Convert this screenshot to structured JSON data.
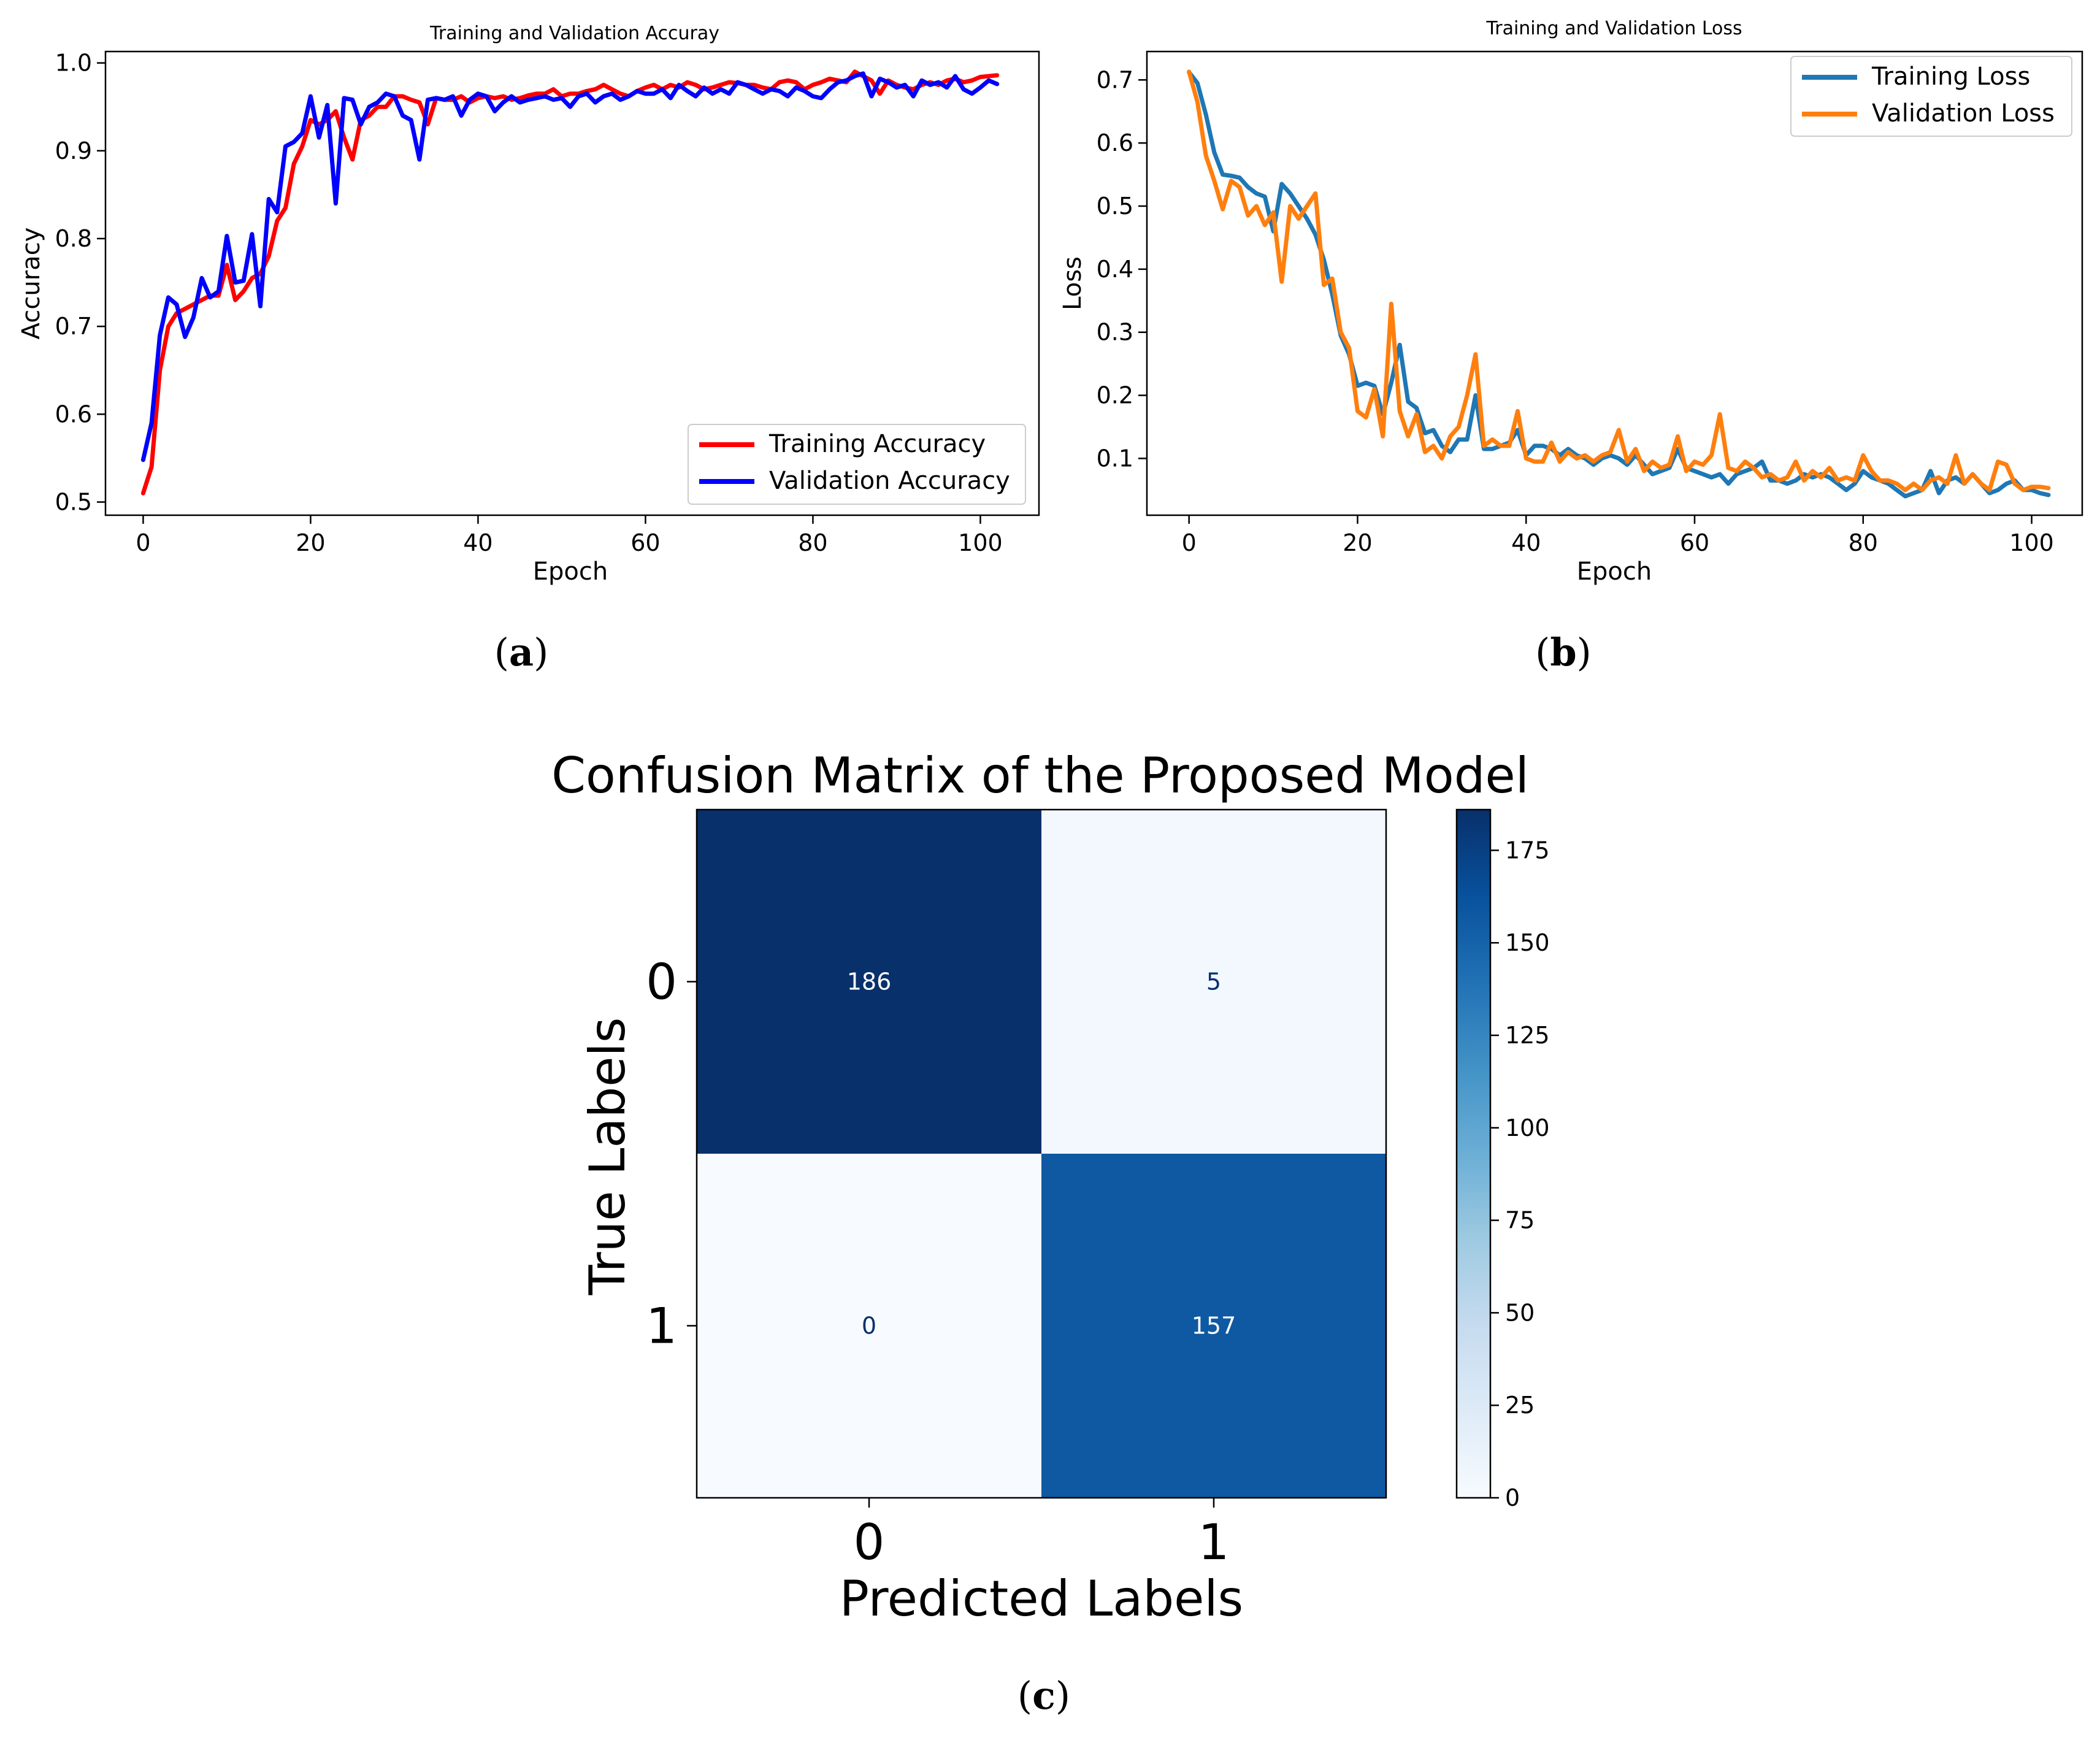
{
  "panels": {
    "a": {
      "label": "a"
    },
    "b": {
      "label": "b"
    },
    "c": {
      "label": "c"
    }
  },
  "chart_data": [
    {
      "type": "line",
      "title": "Training and Validation Accuray",
      "xlabel": "Epoch",
      "ylabel": "Accuracy",
      "xlim": [
        -4.5,
        107
      ],
      "ylim": [
        0.485,
        1.013
      ],
      "xticks": [
        0,
        20,
        40,
        60,
        80,
        100
      ],
      "yticks": [
        0.5,
        0.6,
        0.7,
        0.8,
        0.9,
        1.0
      ],
      "ytick_labels": [
        "0.5",
        "0.6",
        "0.7",
        "0.8",
        "0.9",
        "1.0"
      ],
      "grid": false,
      "legend": "lower-right",
      "colors": {
        "series": [
          "#ff0000",
          "#0000ff"
        ]
      },
      "x": [
        0,
        1,
        2,
        3,
        4,
        5,
        6,
        7,
        8,
        9,
        10,
        11,
        12,
        13,
        14,
        15,
        16,
        17,
        18,
        19,
        20,
        21,
        22,
        23,
        24,
        25,
        26,
        27,
        28,
        29,
        30,
        31,
        32,
        33,
        34,
        35,
        36,
        37,
        38,
        39,
        40,
        41,
        42,
        43,
        44,
        45,
        46,
        47,
        48,
        49,
        50,
        51,
        52,
        53,
        54,
        55,
        56,
        57,
        58,
        59,
        60,
        61,
        62,
        63,
        64,
        65,
        66,
        67,
        68,
        69,
        70,
        71,
        72,
        73,
        74,
        75,
        76,
        77,
        78,
        79,
        80,
        81,
        82,
        83,
        84,
        85,
        86,
        87,
        88,
        89,
        90,
        91,
        92,
        93,
        94,
        95,
        96,
        97,
        98,
        99,
        100,
        101,
        102
      ],
      "series": [
        {
          "name": "Training Accuracy",
          "values": [
            0.51,
            0.54,
            0.65,
            0.7,
            0.715,
            0.72,
            0.725,
            0.73,
            0.735,
            0.735,
            0.77,
            0.73,
            0.74,
            0.755,
            0.76,
            0.78,
            0.82,
            0.835,
            0.885,
            0.905,
            0.935,
            0.93,
            0.935,
            0.945,
            0.915,
            0.89,
            0.935,
            0.94,
            0.95,
            0.95,
            0.962,
            0.962,
            0.958,
            0.955,
            0.93,
            0.96,
            0.958,
            0.958,
            0.962,
            0.955,
            0.96,
            0.962,
            0.96,
            0.962,
            0.958,
            0.96,
            0.963,
            0.965,
            0.965,
            0.97,
            0.962,
            0.965,
            0.965,
            0.968,
            0.97,
            0.975,
            0.97,
            0.965,
            0.962,
            0.968,
            0.972,
            0.975,
            0.97,
            0.975,
            0.972,
            0.978,
            0.975,
            0.97,
            0.972,
            0.975,
            0.978,
            0.977,
            0.975,
            0.975,
            0.972,
            0.97,
            0.978,
            0.98,
            0.978,
            0.97,
            0.975,
            0.978,
            0.982,
            0.98,
            0.978,
            0.99,
            0.985,
            0.98,
            0.965,
            0.98,
            0.975,
            0.972,
            0.97,
            0.975,
            0.978,
            0.975,
            0.98,
            0.982,
            0.978,
            0.98,
            0.984,
            0.985,
            0.986
          ]
        },
        {
          "name": "Validation Accuracy",
          "values": [
            0.548,
            0.59,
            0.69,
            0.733,
            0.725,
            0.688,
            0.71,
            0.755,
            0.733,
            0.74,
            0.803,
            0.75,
            0.752,
            0.805,
            0.723,
            0.845,
            0.83,
            0.905,
            0.91,
            0.92,
            0.962,
            0.915,
            0.952,
            0.84,
            0.96,
            0.958,
            0.93,
            0.95,
            0.955,
            0.965,
            0.962,
            0.94,
            0.935,
            0.89,
            0.958,
            0.96,
            0.958,
            0.962,
            0.94,
            0.958,
            0.965,
            0.962,
            0.945,
            0.955,
            0.962,
            0.955,
            0.958,
            0.96,
            0.962,
            0.958,
            0.96,
            0.95,
            0.962,
            0.965,
            0.955,
            0.962,
            0.965,
            0.958,
            0.962,
            0.968,
            0.965,
            0.965,
            0.97,
            0.96,
            0.975,
            0.968,
            0.962,
            0.972,
            0.965,
            0.97,
            0.965,
            0.978,
            0.975,
            0.97,
            0.965,
            0.97,
            0.968,
            0.962,
            0.972,
            0.968,
            0.962,
            0.96,
            0.97,
            0.978,
            0.98,
            0.985,
            0.988,
            0.962,
            0.982,
            0.978,
            0.972,
            0.975,
            0.962,
            0.98,
            0.975,
            0.978,
            0.972,
            0.985,
            0.97,
            0.965,
            0.972,
            0.98,
            0.976
          ]
        }
      ]
    },
    {
      "type": "line",
      "title": "Training and Validation Loss",
      "xlabel": "Epoch",
      "ylabel": "Loss",
      "xlim": [
        -5,
        106
      ],
      "ylim": [
        0.01,
        0.745
      ],
      "xticks": [
        0,
        20,
        40,
        60,
        80,
        100
      ],
      "yticks": [
        0.1,
        0.2,
        0.3,
        0.4,
        0.5,
        0.6,
        0.7
      ],
      "ytick_labels": [
        "0.1",
        "0.2",
        "0.3",
        "0.4",
        "0.5",
        "0.6",
        "0.7"
      ],
      "grid": false,
      "legend": "top-right",
      "colors": {
        "series": [
          "#1f77b4",
          "#ff7f0e"
        ]
      },
      "x": [
        0,
        1,
        2,
        3,
        4,
        5,
        6,
        7,
        8,
        9,
        10,
        11,
        12,
        13,
        14,
        15,
        16,
        17,
        18,
        19,
        20,
        21,
        22,
        23,
        24,
        25,
        26,
        27,
        28,
        29,
        30,
        31,
        32,
        33,
        34,
        35,
        36,
        37,
        38,
        39,
        40,
        41,
        42,
        43,
        44,
        45,
        46,
        47,
        48,
        49,
        50,
        51,
        52,
        53,
        54,
        55,
        56,
        57,
        58,
        59,
        60,
        61,
        62,
        63,
        64,
        65,
        66,
        67,
        68,
        69,
        70,
        71,
        72,
        73,
        74,
        75,
        76,
        77,
        78,
        79,
        80,
        81,
        82,
        83,
        84,
        85,
        86,
        87,
        88,
        89,
        90,
        91,
        92,
        93,
        94,
        95,
        96,
        97,
        98,
        99,
        100,
        101,
        102
      ],
      "series": [
        {
          "name": "Training Loss",
          "values": [
            0.712,
            0.695,
            0.645,
            0.585,
            0.55,
            0.548,
            0.545,
            0.53,
            0.52,
            0.515,
            0.46,
            0.535,
            0.52,
            0.5,
            0.48,
            0.455,
            0.415,
            0.36,
            0.295,
            0.265,
            0.215,
            0.22,
            0.215,
            0.17,
            0.22,
            0.28,
            0.19,
            0.18,
            0.14,
            0.145,
            0.12,
            0.11,
            0.13,
            0.13,
            0.2,
            0.115,
            0.115,
            0.12,
            0.125,
            0.145,
            0.105,
            0.12,
            0.12,
            0.115,
            0.105,
            0.115,
            0.105,
            0.1,
            0.09,
            0.1,
            0.105,
            0.1,
            0.09,
            0.105,
            0.09,
            0.075,
            0.08,
            0.085,
            0.115,
            0.085,
            0.08,
            0.075,
            0.07,
            0.075,
            0.06,
            0.075,
            0.08,
            0.085,
            0.095,
            0.065,
            0.065,
            0.06,
            0.065,
            0.075,
            0.07,
            0.075,
            0.07,
            0.06,
            0.05,
            0.06,
            0.08,
            0.07,
            0.065,
            0.06,
            0.05,
            0.04,
            0.045,
            0.05,
            0.08,
            0.045,
            0.065,
            0.07,
            0.06,
            0.075,
            0.06,
            0.045,
            0.05,
            0.06,
            0.065,
            0.05,
            0.05,
            0.045,
            0.042
          ]
        },
        {
          "name": "Validation Loss",
          "values": [
            0.713,
            0.665,
            0.58,
            0.54,
            0.495,
            0.54,
            0.53,
            0.485,
            0.5,
            0.47,
            0.49,
            0.38,
            0.5,
            0.48,
            0.5,
            0.52,
            0.375,
            0.385,
            0.3,
            0.275,
            0.175,
            0.165,
            0.21,
            0.135,
            0.345,
            0.175,
            0.135,
            0.17,
            0.11,
            0.12,
            0.1,
            0.135,
            0.15,
            0.2,
            0.265,
            0.12,
            0.13,
            0.12,
            0.12,
            0.175,
            0.1,
            0.095,
            0.095,
            0.125,
            0.095,
            0.11,
            0.1,
            0.105,
            0.095,
            0.105,
            0.11,
            0.145,
            0.095,
            0.115,
            0.08,
            0.095,
            0.085,
            0.09,
            0.135,
            0.08,
            0.095,
            0.09,
            0.105,
            0.17,
            0.085,
            0.08,
            0.095,
            0.085,
            0.07,
            0.075,
            0.065,
            0.07,
            0.095,
            0.065,
            0.08,
            0.07,
            0.085,
            0.065,
            0.07,
            0.065,
            0.105,
            0.08,
            0.065,
            0.065,
            0.06,
            0.05,
            0.06,
            0.05,
            0.065,
            0.07,
            0.06,
            0.105,
            0.06,
            0.075,
            0.06,
            0.05,
            0.095,
            0.09,
            0.06,
            0.05,
            0.055,
            0.055,
            0.053
          ]
        }
      ]
    },
    {
      "type": "heatmap",
      "title": "Confusion Matrix of the Proposed Model",
      "xlabel": "Predicted Labels",
      "ylabel": "True Labels",
      "x_categories": [
        "0",
        "1"
      ],
      "y_categories": [
        "0",
        "1"
      ],
      "matrix": [
        [
          186,
          5
        ],
        [
          0,
          157
        ]
      ],
      "colormap": "Blues",
      "colorbar": {
        "range": [
          0,
          186
        ],
        "ticks": [
          0,
          25,
          50,
          75,
          100,
          125,
          150,
          175
        ]
      }
    }
  ]
}
